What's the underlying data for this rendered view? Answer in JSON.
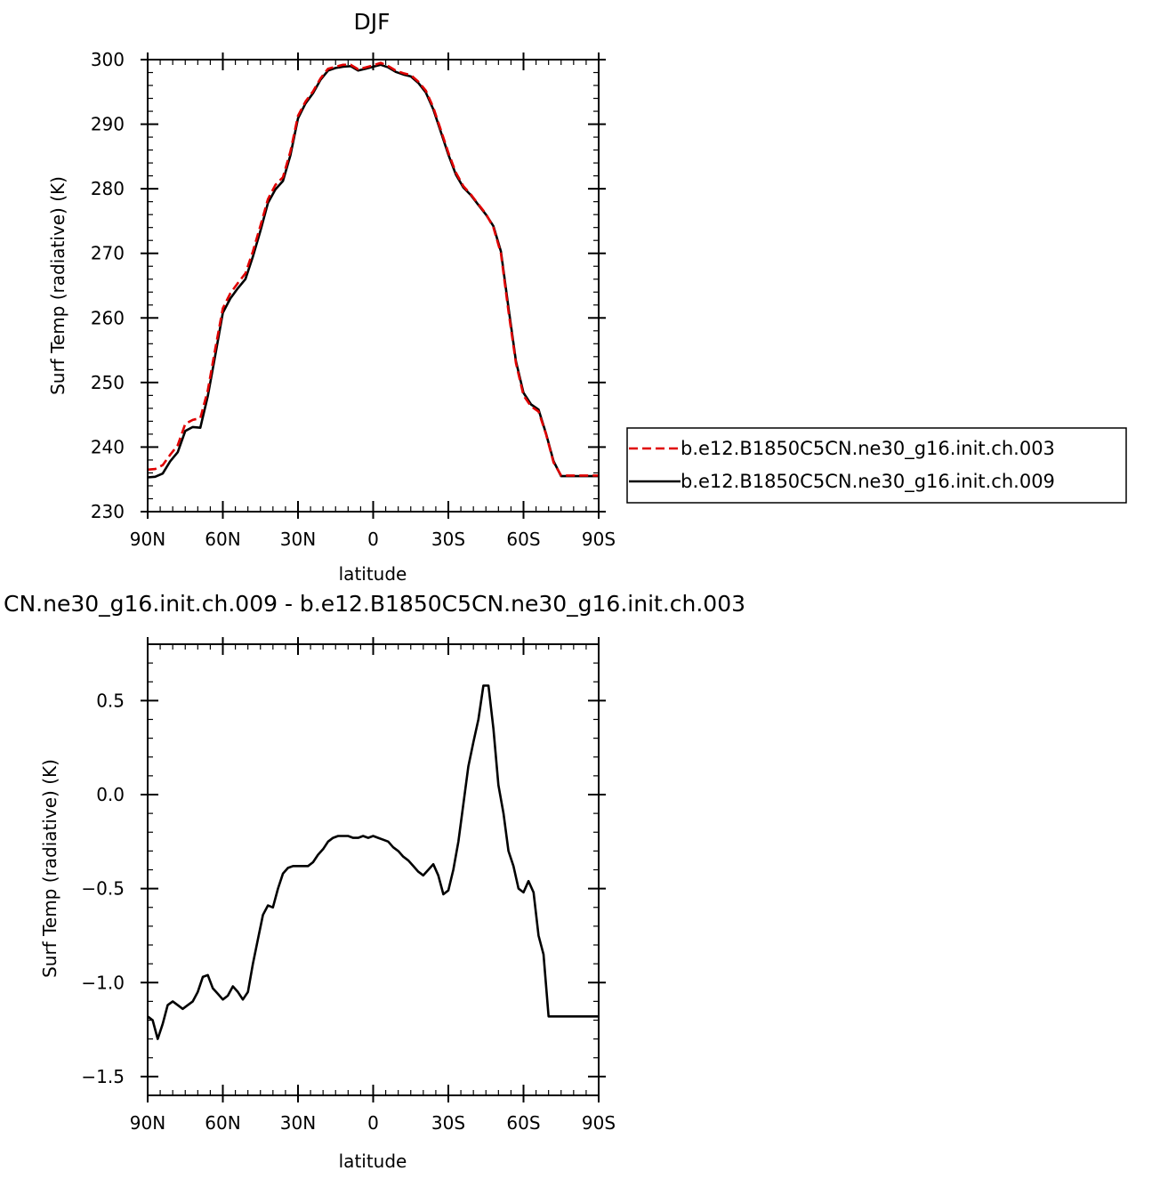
{
  "chart_data": [
    {
      "type": "line",
      "title": "DJF",
      "xlabel": "latitude",
      "ylabel": "Surf Temp (radiative) (K)",
      "xlim": [
        90,
        -90
      ],
      "ylim": [
        230,
        300
      ],
      "xticks": [
        {
          "value": 90,
          "label": "90N"
        },
        {
          "value": 60,
          "label": "60N"
        },
        {
          "value": 30,
          "label": "30N"
        },
        {
          "value": 0,
          "label": "0"
        },
        {
          "value": -30,
          "label": "30S"
        },
        {
          "value": -60,
          "label": "60S"
        },
        {
          "value": -90,
          "label": "90S"
        }
      ],
      "yticks": [
        {
          "value": 230,
          "label": "230"
        },
        {
          "value": 240,
          "label": "240"
        },
        {
          "value": 250,
          "label": "250"
        },
        {
          "value": 260,
          "label": "260"
        },
        {
          "value": 270,
          "label": "270"
        },
        {
          "value": 280,
          "label": "280"
        },
        {
          "value": 290,
          "label": "290"
        },
        {
          "value": 300,
          "label": "300"
        }
      ],
      "legend_position": "right",
      "series": [
        {
          "name": "b.e12.B1850C5CN.ne30_g16.init.ch.003",
          "color": "#e00000",
          "dash": "dashed",
          "x": [
            90,
            87,
            84,
            81,
            78,
            75,
            72,
            69,
            66,
            63,
            60,
            57,
            54,
            51,
            48,
            45,
            42,
            39,
            36,
            33,
            30,
            27,
            24,
            21,
            18,
            15,
            12,
            9,
            6,
            3,
            0,
            -3,
            -6,
            -9,
            -12,
            -15,
            -18,
            -21,
            -24,
            -27,
            -30,
            -33,
            -36,
            -39,
            -42,
            -45,
            -48,
            -51,
            -54,
            -57,
            -60,
            -63,
            -66,
            -69,
            -72,
            -75,
            -78,
            -81,
            -84,
            -87,
            -90
          ],
          "y": [
            236.5,
            236.6,
            237.2,
            238.8,
            240.3,
            243.6,
            244.2,
            244.5,
            248.8,
            255.3,
            261.5,
            263.8,
            265.4,
            266.9,
            270.3,
            274.3,
            278.4,
            280.6,
            281.8,
            285.8,
            291.3,
            293.5,
            295.1,
            297.1,
            298.6,
            298.9,
            299.2,
            299.2,
            298.5,
            298.8,
            299.1,
            299.5,
            299.0,
            298.3,
            297.9,
            297.6,
            296.6,
            295.2,
            292.6,
            289.1,
            285.6,
            282.5,
            280.4,
            279.1,
            277.6,
            276.1,
            274.0,
            270.0,
            261.0,
            253.0,
            248.0,
            246.3,
            245.5,
            242.0,
            237.6,
            235.6,
            235.6,
            235.6,
            235.6,
            235.6,
            235.6
          ]
        },
        {
          "name": "b.e12.B1850C5CN.ne30_g16.init.ch.009",
          "color": "#000000",
          "dash": "solid",
          "x": [
            90,
            87,
            84,
            81,
            78,
            75,
            72,
            69,
            66,
            63,
            60,
            57,
            54,
            51,
            48,
            45,
            42,
            39,
            36,
            33,
            30,
            27,
            24,
            21,
            18,
            15,
            12,
            9,
            6,
            3,
            0,
            -3,
            -6,
            -9,
            -12,
            -15,
            -18,
            -21,
            -24,
            -27,
            -30,
            -33,
            -36,
            -39,
            -42,
            -45,
            -48,
            -51,
            -54,
            -57,
            -60,
            -63,
            -66,
            -69,
            -72,
            -75,
            -78,
            -81,
            -84,
            -87,
            -90
          ],
          "y": [
            235.3,
            235.4,
            235.9,
            237.8,
            239.2,
            242.5,
            243.1,
            243.0,
            247.9,
            254.3,
            260.8,
            263.0,
            264.6,
            266.0,
            269.5,
            273.5,
            277.8,
            279.9,
            281.2,
            285.2,
            290.9,
            293.2,
            294.8,
            296.9,
            298.3,
            298.7,
            298.9,
            299.0,
            298.3,
            298.6,
            298.9,
            299.2,
            298.8,
            298.1,
            297.7,
            297.4,
            296.4,
            294.9,
            292.3,
            288.8,
            285.3,
            282.2,
            280.2,
            279.0,
            277.5,
            276.0,
            274.2,
            270.3,
            261.6,
            253.3,
            248.4,
            246.6,
            245.8,
            242.1,
            237.8,
            235.5,
            235.5,
            235.5,
            235.5,
            235.5,
            235.5
          ]
        }
      ]
    },
    {
      "type": "line",
      "title": "CN.ne30_g16.init.ch.009 - b.e12.B1850C5CN.ne30_g16.init.ch.003",
      "xlabel": "latitude",
      "ylabel": "Surf Temp (radiative) (K)",
      "xlim": [
        90,
        -90
      ],
      "ylim": [
        -1.6,
        0.8
      ],
      "xticks": [
        {
          "value": 90,
          "label": "90N"
        },
        {
          "value": 60,
          "label": "60N"
        },
        {
          "value": 30,
          "label": "30N"
        },
        {
          "value": 0,
          "label": "0"
        },
        {
          "value": -30,
          "label": "30S"
        },
        {
          "value": -60,
          "label": "60S"
        },
        {
          "value": -90,
          "label": "90S"
        }
      ],
      "yticks": [
        {
          "value": 0.5,
          "label": "0.5"
        },
        {
          "value": 0.0,
          "label": "0.0"
        },
        {
          "value": -0.5,
          "label": "−0.5"
        },
        {
          "value": -1.0,
          "label": "−1.0"
        },
        {
          "value": -1.5,
          "label": "−1.5"
        }
      ],
      "series": [
        {
          "name": "",
          "color": "#000000",
          "dash": "solid",
          "x": [
            90,
            88,
            86,
            84,
            82,
            80,
            78,
            76,
            74,
            72,
            70,
            68,
            66,
            64,
            62,
            60,
            58,
            56,
            54,
            52,
            50,
            48,
            46,
            44,
            42,
            40,
            38,
            36,
            34,
            32,
            30,
            28,
            26,
            24,
            22,
            20,
            18,
            16,
            14,
            12,
            10,
            8,
            6,
            4,
            2,
            0,
            -2,
            -4,
            -6,
            -8,
            -10,
            -12,
            -14,
            -16,
            -18,
            -20,
            -22,
            -24,
            -26,
            -28,
            -30,
            -32,
            -34,
            -36,
            -38,
            -40,
            -42,
            -44,
            -46,
            -48,
            -50,
            -52,
            -54,
            -56,
            -58,
            -60,
            -62,
            -64,
            -66,
            -68,
            -70,
            -72,
            -74,
            -76,
            -78,
            -80,
            -82,
            -84,
            -86,
            -88,
            -90
          ],
          "y": [
            -1.18,
            -1.2,
            -1.3,
            -1.22,
            -1.12,
            -1.1,
            -1.12,
            -1.14,
            -1.12,
            -1.1,
            -1.05,
            -0.97,
            -0.96,
            -1.03,
            -1.06,
            -1.09,
            -1.07,
            -1.02,
            -1.05,
            -1.09,
            -1.05,
            -0.9,
            -0.77,
            -0.64,
            -0.59,
            -0.6,
            -0.5,
            -0.42,
            -0.39,
            -0.38,
            -0.38,
            -0.38,
            -0.38,
            -0.36,
            -0.32,
            -0.29,
            -0.25,
            -0.23,
            -0.22,
            -0.22,
            -0.22,
            -0.23,
            -0.23,
            -0.22,
            -0.23,
            -0.22,
            -0.23,
            -0.24,
            -0.25,
            -0.28,
            -0.3,
            -0.33,
            -0.35,
            -0.38,
            -0.41,
            -0.43,
            -0.4,
            -0.37,
            -0.43,
            -0.53,
            -0.51,
            -0.4,
            -0.25,
            -0.05,
            0.15,
            0.28,
            0.4,
            0.58,
            0.58,
            0.35,
            0.05,
            -0.1,
            -0.3,
            -0.38,
            -0.5,
            -0.52,
            -0.46,
            -0.52,
            -0.75,
            -0.85,
            -1.18,
            -1.18,
            -1.18,
            -1.18,
            -1.18,
            -1.18,
            -1.18,
            -1.18,
            -1.18,
            -1.18,
            -1.18
          ]
        }
      ]
    }
  ]
}
